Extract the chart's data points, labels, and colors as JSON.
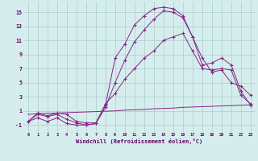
{
  "background_color": "#d5eeed",
  "grid_color": "#aacccc",
  "line_color": "#882288",
  "xlabel": "Windchill (Refroidissement éolien,°C)",
  "xlim": [
    -0.5,
    23.5
  ],
  "ylim": [
    -2.0,
    16.5
  ],
  "xticks": [
    0,
    1,
    2,
    3,
    4,
    5,
    6,
    7,
    8,
    9,
    10,
    11,
    12,
    13,
    14,
    15,
    16,
    17,
    18,
    19,
    20,
    21,
    22,
    23
  ],
  "yticks": [
    -1,
    1,
    3,
    5,
    7,
    9,
    11,
    13,
    15
  ],
  "hours": [
    0,
    1,
    2,
    3,
    4,
    5,
    6,
    7,
    8,
    9,
    10,
    11,
    12,
    13,
    14,
    15,
    16,
    17,
    18,
    19,
    20,
    21,
    22,
    23
  ],
  "curve1": [
    -0.5,
    0.7,
    0.3,
    0.7,
    0.5,
    -0.5,
    -0.7,
    -0.7,
    1.8,
    8.5,
    10.5,
    13.2,
    14.5,
    15.5,
    15.7,
    15.5,
    14.5,
    11.5,
    8.5,
    6.5,
    6.8,
    5.0,
    4.5,
    3.2
  ],
  "curve2": [
    -0.5,
    0.5,
    0.2,
    0.5,
    -0.2,
    -0.7,
    -1.0,
    -0.8,
    1.5,
    5.0,
    8.2,
    10.8,
    12.5,
    14.0,
    15.2,
    15.0,
    14.2,
    11.5,
    7.5,
    7.8,
    8.5,
    7.5,
    3.8,
    1.8
  ],
  "curve3": [
    -0.5,
    0.0,
    -0.5,
    0.0,
    -0.8,
    -1.0,
    -1.0,
    -0.8,
    2.0,
    3.5,
    5.5,
    7.0,
    8.5,
    9.5,
    11.0,
    11.5,
    12.0,
    9.5,
    7.0,
    6.8,
    7.0,
    6.8,
    3.2,
    2.0
  ],
  "curve4": [
    0.5,
    0.6,
    0.65,
    0.7,
    0.75,
    0.8,
    0.85,
    0.9,
    0.95,
    1.0,
    1.1,
    1.15,
    1.2,
    1.3,
    1.35,
    1.4,
    1.5,
    1.55,
    1.6,
    1.65,
    1.7,
    1.75,
    1.8,
    1.85
  ]
}
